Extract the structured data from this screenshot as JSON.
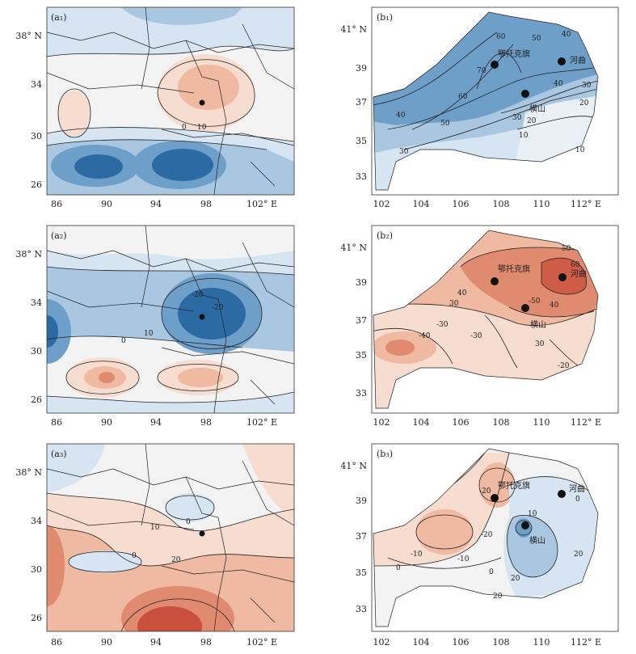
{
  "panels": {
    "a1": {
      "label": "(a₁)",
      "contours": [
        "0",
        "10"
      ]
    },
    "a2": {
      "label": "(a₂)",
      "contours": [
        "-20",
        "-20",
        "0",
        "10"
      ]
    },
    "a3": {
      "label": "(a₃)",
      "contours": [
        "0",
        "10",
        "0",
        "20"
      ]
    },
    "b1": {
      "label": "(b₁)",
      "contours": [
        "60",
        "50",
        "40",
        "70",
        "60",
        "40",
        "50",
        "40",
        "30",
        "20",
        "10",
        "30",
        "30",
        "20",
        "10"
      ]
    },
    "b2": {
      "label": "(b₂)",
      "contours": [
        "50",
        "60",
        "40",
        "30",
        "-50",
        "40",
        "-30",
        "-30",
        "-40",
        "30",
        "-20"
      ]
    },
    "b3": {
      "label": "(b₃)",
      "contours": [
        "-20",
        "-20",
        "0",
        "-10",
        "-10",
        "0",
        "10",
        "0",
        "20",
        "20",
        "20"
      ]
    }
  },
  "axes": {
    "a_x_ticks": [
      "86",
      "90",
      "94",
      "98",
      "102° E"
    ],
    "a_y_ticks": [
      "38° N",
      "34",
      "30",
      "26"
    ],
    "b_x_ticks": [
      "102",
      "104",
      "106",
      "108",
      "110",
      "112° E"
    ],
    "b_y_ticks": [
      "41° N",
      "39",
      "37",
      "35",
      "33"
    ]
  },
  "stations": {
    "ordos": "鄂托克旗",
    "hequ": "河曲",
    "hengshan": "横山"
  },
  "colors": {
    "blue_dark": "#2c6aa3",
    "blue_mid": "#6e9fc9",
    "blue_light": "#a9c7e0",
    "blue_pale": "#d6e5f1",
    "neutral": "#f3f3f3",
    "red_pale": "#f7dcd0",
    "red_light": "#f0b9a2",
    "red_mid": "#e08a70",
    "red_dark": "#c9503c"
  }
}
